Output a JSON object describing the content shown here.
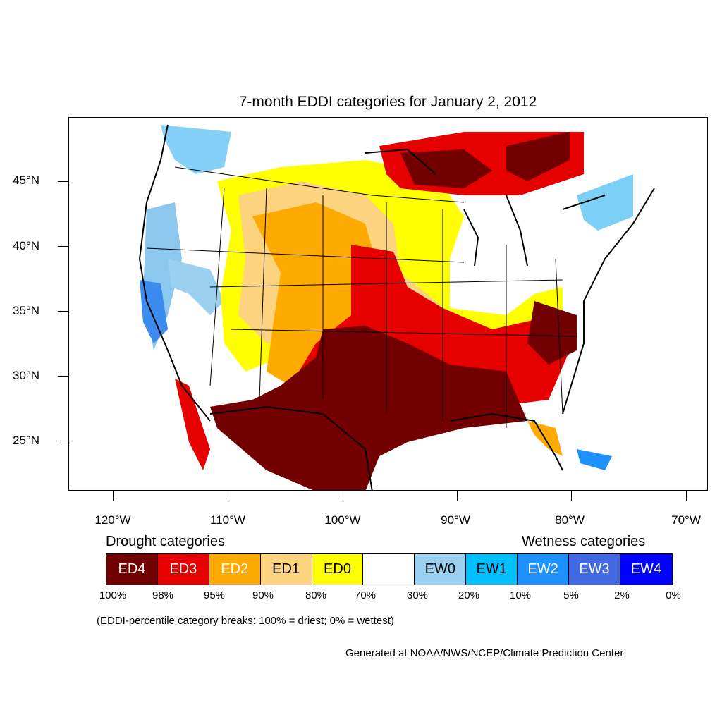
{
  "title": "7-month EDDI categories for January 2, 2012",
  "lat_labels": [
    "45°N",
    "40°N",
    "35°N",
    "30°N",
    "25°N"
  ],
  "lon_labels": [
    "120°W",
    "110°W",
    "100°W",
    "90°W",
    "80°W",
    "70°W"
  ],
  "legend": {
    "drought_heading": "Drought categories",
    "wetness_heading": "Wetness categories",
    "categories": [
      {
        "label": "ED4",
        "color": "#730000",
        "text_color": "#ffffff"
      },
      {
        "label": "ED3",
        "color": "#e60000",
        "text_color": "#ffffff"
      },
      {
        "label": "ED2",
        "color": "#ffaa00",
        "text_color": "#ffffff"
      },
      {
        "label": "ED1",
        "color": "#fcd37f",
        "text_color": "#000000"
      },
      {
        "label": "ED0",
        "color": "#ffff00",
        "text_color": "#000000"
      },
      {
        "label": "",
        "color": "#ffffff",
        "text_color": "#000000"
      },
      {
        "label": "EW0",
        "color": "#9bd0f0",
        "text_color": "#000000"
      },
      {
        "label": "EW1",
        "color": "#00bfff",
        "text_color": "#000000"
      },
      {
        "label": "EW2",
        "color": "#1e90ff",
        "text_color": "#ffffff"
      },
      {
        "label": "EW3",
        "color": "#4169e1",
        "text_color": "#ffffff"
      },
      {
        "label": "EW4",
        "color": "#0000ff",
        "text_color": "#ffffff"
      }
    ],
    "percent_breaks": [
      "100%",
      "98%",
      "95%",
      "90%",
      "80%",
      "70%",
      "30%",
      "20%",
      "10%",
      "5%",
      "2%",
      "0%"
    ]
  },
  "note": "(EDDI-percentile category breaks: 100% = driest; 0% = wettest)",
  "credit": "Generated at NOAA/NWS/NCEP/Climate Prediction Center"
}
